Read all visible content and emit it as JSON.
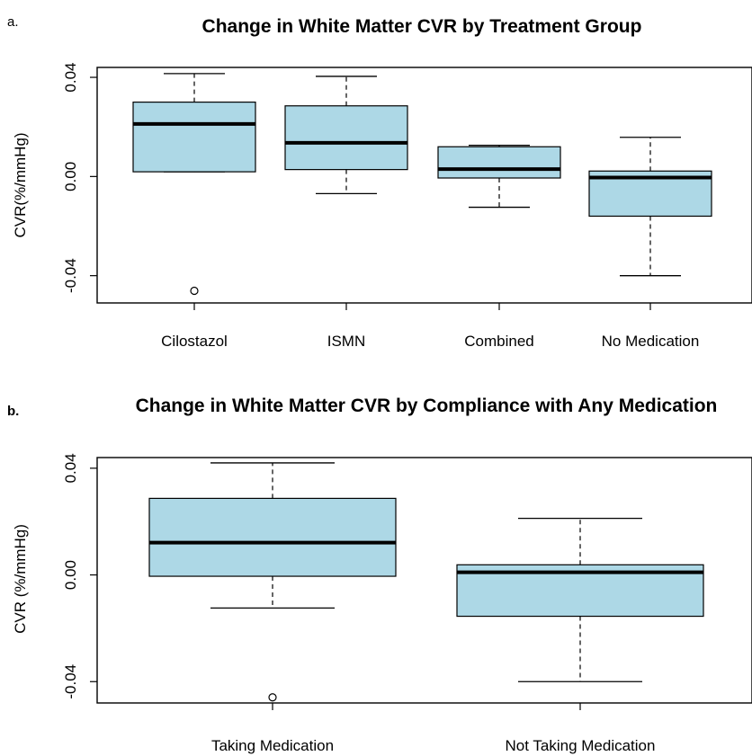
{
  "panels": [
    {
      "label": "a."
    },
    {
      "label": "b."
    }
  ],
  "colors": {
    "box_fill": "#add8e6",
    "stroke": "#000000",
    "background": "#ffffff"
  },
  "chart_data": [
    {
      "type": "box",
      "title": "Change in White Matter CVR by Treatment Group",
      "xlabel": "",
      "ylabel": "CVR(%/mmHg)",
      "ylim": [
        -0.051,
        0.044
      ],
      "yticks": [
        -0.04,
        0.0,
        0.04
      ],
      "ytick_labels": [
        "-0.04",
        "0.00",
        "0.04"
      ],
      "categories": [
        "Cilostazol",
        "ISMN",
        "Combined",
        "No Medication"
      ],
      "boxes": [
        {
          "whisker_low": 0.0019,
          "q1": 0.0019,
          "median": 0.0212,
          "q3": 0.03,
          "whisker_high": 0.0415,
          "outliers": [
            -0.0461
          ]
        },
        {
          "whisker_low": -0.0069,
          "q1": 0.0028,
          "median": 0.0136,
          "q3": 0.0285,
          "whisker_high": 0.0404,
          "outliers": []
        },
        {
          "whisker_low": -0.0124,
          "q1": -0.0006,
          "median": 0.003,
          "q3": 0.012,
          "whisker_high": 0.0126,
          "outliers": []
        },
        {
          "whisker_low": -0.04,
          "q1": -0.016,
          "median": -0.0004,
          "q3": 0.0022,
          "whisker_high": 0.0158,
          "outliers": []
        }
      ],
      "grid": false,
      "legend": "none"
    },
    {
      "type": "box",
      "title": "Change in White Matter CVR by Compliance with Any Medication",
      "xlabel": "",
      "ylabel": "CVR (%/mmHg)",
      "ylim": [
        -0.048,
        0.044
      ],
      "yticks": [
        -0.04,
        0.0,
        0.04
      ],
      "ytick_labels": [
        "-0.04",
        "0.00",
        "0.04"
      ],
      "categories": [
        "Taking Medication",
        "Not Taking Medication"
      ],
      "boxes": [
        {
          "whisker_low": -0.0124,
          "q1": -0.0005,
          "median": 0.0121,
          "q3": 0.0287,
          "whisker_high": 0.042,
          "outliers": [
            -0.0459
          ]
        },
        {
          "whisker_low": -0.04,
          "q1": -0.0155,
          "median": 0.001,
          "q3": 0.0038,
          "whisker_high": 0.0212,
          "outliers": []
        }
      ],
      "grid": false,
      "legend": "none"
    }
  ]
}
